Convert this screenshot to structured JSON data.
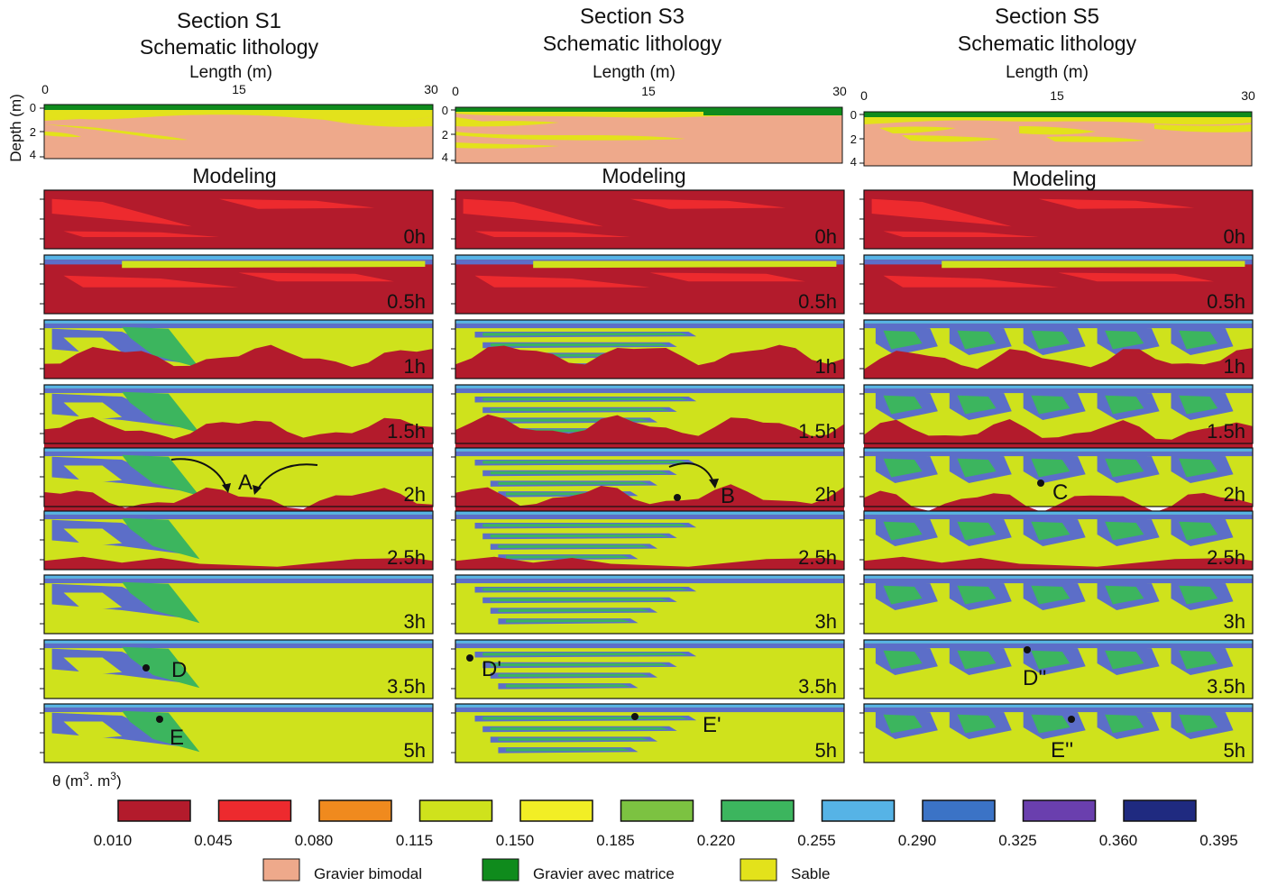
{
  "colors": {
    "dry": "#b31b2c",
    "red": "#ed2a2e",
    "wet_yellow": "#cfe21c",
    "green": "#3cb55e",
    "blue": "#5c6ec8",
    "cyan": "#56b3e6",
    "lith_gravel_bimodal": "#eea98b",
    "lith_gravel_matrix": "#0f8b1c",
    "lith_sand": "#e3e21b"
  },
  "sections": [
    {
      "id": "S1",
      "title": "Section S1",
      "subtitle": "Schematic lithology",
      "length_label": "Length (m)",
      "ticks": [
        "0",
        "15",
        "30"
      ],
      "modeling_label": "Modeling",
      "time_labels": [
        "0h",
        "0.5h",
        "1h",
        "1.5h",
        "2h",
        "2.5h",
        "3h",
        "3.5h",
        "5h"
      ]
    },
    {
      "id": "S3",
      "title": "Section S3",
      "subtitle": "Schematic lithology",
      "length_label": "Length (m)",
      "ticks": [
        "0",
        "15",
        "30"
      ],
      "modeling_label": "Modeling",
      "time_labels": [
        "0h",
        "0.5h",
        "1h",
        "1.5h",
        "2h",
        "2.5h",
        "3h",
        "3.5h",
        "5h"
      ]
    },
    {
      "id": "S5",
      "title": "Section S5",
      "subtitle": "Schematic lithology",
      "length_label": "Length (m)",
      "ticks": [
        "0",
        "15",
        "30"
      ],
      "modeling_label": "Modeling",
      "time_labels": [
        "0h",
        "0.5h",
        "1h",
        "1.5h",
        "2h",
        "2.5h",
        "3h",
        "3.5h",
        "5h"
      ]
    }
  ],
  "depth_axis": {
    "label": "Depth (m)",
    "ticks": [
      "0",
      "2",
      "4"
    ]
  },
  "annotations": [
    "A",
    "B",
    "C",
    "D",
    "D'",
    "D''",
    "E",
    "E'",
    "E''"
  ],
  "theta_legend": {
    "title_prefix": "θ (m",
    "title_mid": ". m",
    "title_suffix": ")",
    "title_sup": "3",
    "swatch_colors": [
      "#b31b2c",
      "#ed2a2e",
      "#f08a1e",
      "#cfe21c",
      "#f2ee25",
      "#7cc241",
      "#3cb55e",
      "#56b3e6",
      "#3b73c6",
      "#6a3fae",
      "#1f2a80"
    ],
    "values": [
      "0.010",
      "0.045",
      "0.080",
      "0.115",
      "0.150",
      "0.185",
      "0.220",
      "0.255",
      "0.290",
      "0.325",
      "0.360",
      "0.395"
    ]
  },
  "lithology_legend": [
    {
      "label": "Gravier bimodal",
      "color": "#eea98b"
    },
    {
      "label": "Gravier avec matrice",
      "color": "#0f8b1c"
    },
    {
      "label": "Sable",
      "color": "#e3e21b"
    }
  ]
}
